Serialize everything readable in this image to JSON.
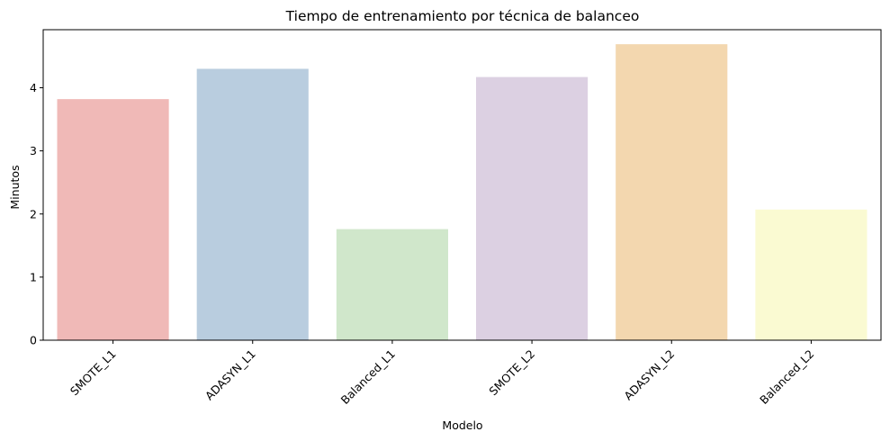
{
  "chart_data": {
    "type": "bar",
    "title": "Tiempo de entrenamiento por técnica de balanceo",
    "xlabel": "Modelo",
    "ylabel": "Minutos",
    "categories": [
      "SMOTE_L1",
      "ADASYN_L1",
      "Balanced_L1",
      "SMOTE_L2",
      "ADASYN_L2",
      "Balanced_L2"
    ],
    "values": [
      3.82,
      4.3,
      1.76,
      4.17,
      4.69,
      2.07
    ],
    "colors": [
      "#f0b9b7",
      "#b9cddf",
      "#d0e7cb",
      "#dcd0e2",
      "#f3d7af",
      "#fafad2"
    ],
    "ylim": [
      0,
      4.92
    ],
    "yticks": [
      0,
      1,
      2,
      3,
      4
    ],
    "grid": false,
    "legend": "none"
  }
}
